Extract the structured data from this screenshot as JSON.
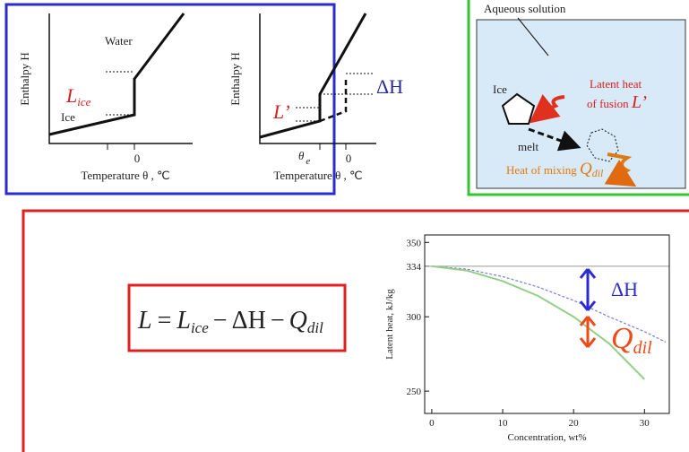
{
  "panel_a": {
    "y_label": "Enthalpy H",
    "x_label": "Temperature θ , ℃",
    "water": "Water",
    "ice": "Ice",
    "latent": {
      "main": "L",
      "sub": "ice"
    },
    "zero": "0"
  },
  "panel_b": {
    "y_label": "Enthalpy H",
    "x_label": "Temperature θ , ℃",
    "latent": "L’",
    "delta": "ΔH",
    "theta": {
      "main": "θ",
      "sub": "e"
    },
    "zero": "0"
  },
  "panel_c": {
    "title": "Aqueous solution",
    "ice": "Ice",
    "latent_line1": "Latent heat",
    "latent_line2": "of fusion",
    "latent_symbol": "L’",
    "melt": "melt",
    "mixing": "Heat of mixing",
    "mixing_symbol": {
      "main": "Q",
      "sub": "dil"
    }
  },
  "equation": {
    "lhs": "L",
    "eq": "=",
    "t1": {
      "main": "L",
      "sub": "ice"
    },
    "minus1": "−",
    "t2": "ΔH",
    "minus2": "−",
    "t3": {
      "main": "Q",
      "sub": "dil"
    }
  },
  "chart_data": {
    "type": "line",
    "x_label": "Concentration,  wt%",
    "y_label": "Latent heat,  kJ/kg",
    "x": [
      0,
      5,
      10,
      15,
      20,
      25,
      30,
      33
    ],
    "series": [
      {
        "color": "#7b7be6",
        "dashed": true,
        "values": [
          334,
          332,
          327,
          320,
          311,
          300,
          290,
          283
        ]
      },
      {
        "color": "#93cf85",
        "dashed": false,
        "values": [
          334,
          331,
          324,
          314,
          300,
          282,
          258,
          null
        ]
      }
    ],
    "reference_line": 334,
    "reference_color": "#999999",
    "xlim": [
      -1,
      33.5
    ],
    "ylim": [
      235,
      355
    ],
    "xticks": [
      0,
      10,
      20,
      30
    ],
    "yticks": [
      250,
      300,
      334,
      350
    ],
    "annotations": {
      "delta": "ΔH",
      "q": {
        "main": "Q",
        "sub": "dil"
      }
    }
  }
}
